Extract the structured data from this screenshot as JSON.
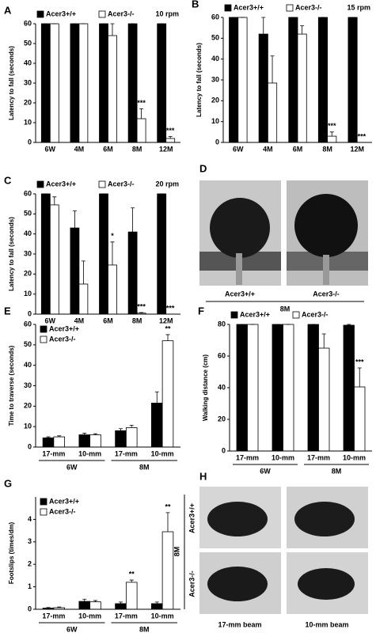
{
  "chart_data": [
    {
      "type": "bar",
      "label": "A",
      "note": "10 rpm",
      "ylabel": "Latency to fall (seconds)",
      "categories": [
        "6W",
        "4M",
        "6M",
        "8M",
        "12M"
      ],
      "ylim": [
        0,
        60
      ],
      "yticks": [
        0,
        10,
        20,
        30,
        40,
        50,
        60
      ],
      "legend": "above",
      "series": [
        {
          "name": "Acer3+/+",
          "color": "#000000",
          "values": [
            60,
            60,
            60,
            60,
            60
          ],
          "errors": [
            0,
            0,
            0,
            0,
            0
          ]
        },
        {
          "name": "Acer3-/-",
          "color": "#ffffff",
          "values": [
            60,
            60,
            54,
            12,
            2
          ],
          "errors": [
            0,
            0,
            6,
            5,
            1
          ],
          "significance": [
            null,
            null,
            null,
            "***",
            "***"
          ]
        }
      ]
    },
    {
      "type": "bar",
      "label": "B",
      "note": "15 rpm",
      "ylabel": "Latency to fall (seconds)",
      "categories": [
        "6W",
        "4M",
        "6M",
        "8M",
        "12M"
      ],
      "ylim": [
        0,
        60
      ],
      "yticks": [
        0,
        10,
        20,
        30,
        40,
        50,
        60
      ],
      "legend": "above",
      "series": [
        {
          "name": "Acer3+/+",
          "color": "#000000",
          "values": [
            60,
            52,
            60,
            60,
            60
          ],
          "errors": [
            0,
            8,
            0,
            0,
            0
          ]
        },
        {
          "name": "Acer3-/-",
          "color": "#ffffff",
          "values": [
            60,
            28.5,
            52,
            3,
            0
          ],
          "errors": [
            0,
            13,
            4,
            2,
            0
          ],
          "significance": [
            null,
            null,
            null,
            "***",
            "***"
          ]
        }
      ]
    },
    {
      "type": "bar",
      "label": "C",
      "note": "20 rpm",
      "ylabel": "Latency to fall (seconds)",
      "categories": [
        "6W",
        "4M",
        "6M",
        "8M",
        "12M"
      ],
      "ylim": [
        0,
        60
      ],
      "yticks": [
        0,
        10,
        20,
        30,
        40,
        50,
        60
      ],
      "legend": "above",
      "series": [
        {
          "name": "Acer3+/+",
          "color": "#000000",
          "values": [
            60,
            43,
            60,
            41,
            60
          ],
          "errors": [
            0,
            8.5,
            0,
            12,
            0
          ]
        },
        {
          "name": "Acer3-/-",
          "color": "#ffffff",
          "values": [
            54.5,
            15,
            24.5,
            0.5,
            0
          ],
          "errors": [
            4,
            11.5,
            11.5,
            0.3,
            0
          ],
          "significance": [
            null,
            null,
            "*",
            "***",
            "***"
          ]
        }
      ]
    },
    {
      "type": "bar",
      "label": "E",
      "ylabel": "Time to traverse (seconds)",
      "categories": [
        "17-mm",
        "10-mm",
        "17-mm",
        "10-mm"
      ],
      "group_labels": [
        "6W",
        "8M"
      ],
      "ylim": [
        0,
        60
      ],
      "yticks": [
        0,
        10,
        20,
        30,
        40,
        50,
        60
      ],
      "legend": "upper left",
      "series": [
        {
          "name": "Acer3+/+",
          "color": "#000000",
          "values": [
            4.5,
            6,
            8,
            21.5
          ],
          "errors": [
            0.5,
            0.8,
            1,
            5.5
          ]
        },
        {
          "name": "Acer3-/-",
          "color": "#ffffff",
          "values": [
            5,
            6,
            9.5,
            52
          ],
          "errors": [
            0.5,
            0.5,
            1.2,
            3
          ],
          "significance": [
            null,
            null,
            null,
            "**"
          ]
        }
      ]
    },
    {
      "type": "bar",
      "label": "F",
      "ylabel": "Walking distance (cm)",
      "categories": [
        "17-mm",
        "10-mm",
        "17-mm",
        "10-mm"
      ],
      "group_labels": [
        "6W",
        "8M"
      ],
      "ylim": [
        0,
        80
      ],
      "yticks": [
        0,
        20,
        40,
        60,
        80
      ],
      "legend": "above",
      "series": [
        {
          "name": "Acer3+/+",
          "color": "#000000",
          "values": [
            80,
            80,
            80,
            79.5
          ],
          "errors": [
            0,
            0,
            0,
            0.5
          ]
        },
        {
          "name": "Acer3-/-",
          "color": "#ffffff",
          "values": [
            80,
            80,
            65,
            40.5
          ],
          "errors": [
            0,
            0,
            9,
            12
          ],
          "significance": [
            null,
            null,
            null,
            "***"
          ]
        }
      ]
    },
    {
      "type": "bar",
      "label": "G",
      "ylabel": "Footslips (times/dm)",
      "categories": [
        "17-mm",
        "10-mm",
        "17-mm",
        "10-mm"
      ],
      "group_labels": [
        "6W",
        "8M"
      ],
      "ylim": [
        0,
        5
      ],
      "yticks": [
        0,
        1,
        2,
        3,
        4
      ],
      "legend": "upper left",
      "series": [
        {
          "name": "Acer3+/+",
          "color": "#000000",
          "values": [
            0.05,
            0.35,
            0.25,
            0.25
          ],
          "errors": [
            0.03,
            0.1,
            0.07,
            0.07
          ]
        },
        {
          "name": "Acer3-/-",
          "color": "#ffffff",
          "values": [
            0.07,
            0.33,
            1.2,
            3.45
          ],
          "errors": [
            0.03,
            0.06,
            0.1,
            0.85
          ],
          "significance": [
            null,
            null,
            "**",
            "**"
          ]
        }
      ]
    }
  ],
  "photo_panels": [
    {
      "label": "D",
      "left": "Acer3+/+",
      "right": "Acer3-/-",
      "age": "8M"
    },
    {
      "label": "H",
      "top": "Acer3+/+",
      "bottom": "Acer3-/-",
      "age": "8M",
      "left": "17-mm beam",
      "right": "10-mm beam"
    }
  ]
}
